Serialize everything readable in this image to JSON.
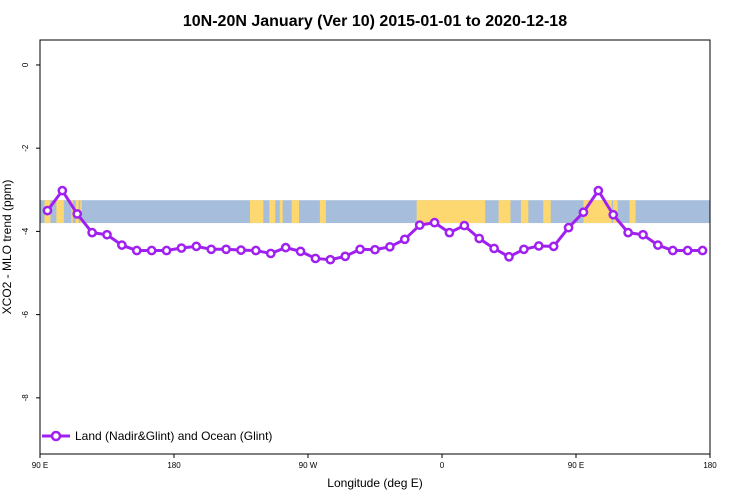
{
  "chart_data": {
    "type": "line",
    "title": "10N-20N January (Ver 10)   2015-01-01 to 2020-12-18",
    "xlabel": "Longitude (deg E)",
    "ylabel": "XCO2 - MLO trend (ppm)",
    "xlim": [
      90,
      540
    ],
    "ylim": [
      -9.35,
      0.6
    ],
    "x_ticks": [
      {
        "value": 90,
        "label": "90 E"
      },
      {
        "value": 180,
        "label": "180"
      },
      {
        "value": 270,
        "label": "90 W"
      },
      {
        "value": 360,
        "label": "0"
      },
      {
        "value": 450,
        "label": "90 E"
      },
      {
        "value": 540,
        "label": "180"
      }
    ],
    "y_ticks": [
      {
        "value": 0,
        "label": "0"
      },
      {
        "value": -2,
        "label": "-2"
      },
      {
        "value": -4,
        "label": "-4"
      },
      {
        "value": -6,
        "label": "-6"
      },
      {
        "value": -8,
        "label": "-8"
      }
    ],
    "map_band": {
      "lat_range": "10N-20N",
      "y_top": -3.25,
      "y_bottom": -3.8,
      "ocean_color": "#a6bddb",
      "land_color": "#fdd870"
    },
    "series": [
      {
        "name": "Land (Nadir&Glint) and Ocean (Glint)",
        "color": "#a020f0",
        "x": [
          95,
          105,
          115,
          125,
          135,
          145,
          155,
          165,
          175,
          185,
          195,
          205,
          215,
          225,
          235,
          245,
          255,
          265,
          275,
          285,
          295,
          305,
          315,
          325,
          335,
          345,
          355,
          365,
          375,
          385,
          395,
          405,
          415,
          425,
          435,
          445,
          455,
          465,
          475,
          485,
          495,
          505,
          515,
          525,
          535
        ],
        "y": [
          -3.5,
          -3.02,
          -3.58,
          -4.03,
          -4.08,
          -4.33,
          -4.46,
          -4.46,
          -4.46,
          -4.4,
          -4.36,
          -4.43,
          -4.43,
          -4.45,
          -4.46,
          -4.53,
          -4.39,
          -4.48,
          -4.65,
          -4.68,
          -4.6,
          -4.43,
          -4.44,
          -4.37,
          -4.19,
          -3.85,
          -3.79,
          -4.03,
          -3.86,
          -4.17,
          -4.41,
          -4.61,
          -4.43,
          -4.35,
          -4.36,
          -3.91,
          -3.54,
          -3.02,
          -3.6,
          -4.03,
          -4.08,
          -4.33,
          -4.46,
          -4.46,
          -4.46
        ]
      }
    ],
    "legend": {
      "position": "bottom-left"
    }
  }
}
